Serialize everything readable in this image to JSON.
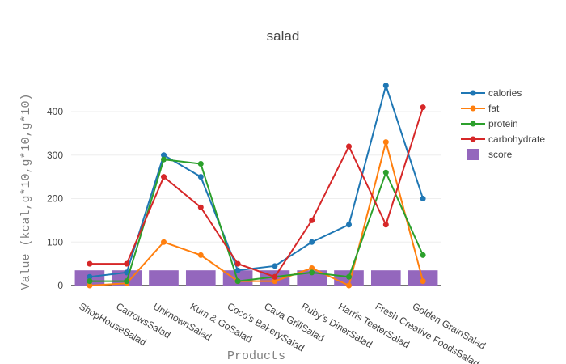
{
  "chart_data": {
    "type": "line",
    "title": "salad",
    "xlabel": "Products",
    "ylabel": "Value (kcal,g*10,g*10,g*10)",
    "categories": [
      "ShopHouseSalad",
      "CarrowsSalad",
      "UnknownSalad",
      "Kum & GoSalad",
      "Coco's BakerySalad",
      "Cava GrillSalad",
      "Ruby's DinerSalad",
      "Harris TeeterSalad",
      "Fresh Creative FoodsSalad",
      "Golden GrainSalad"
    ],
    "ylim": [
      0,
      480
    ],
    "yticks": [
      0,
      100,
      200,
      300,
      400
    ],
    "grid": true,
    "legend_position": "right",
    "series": [
      {
        "name": "calories",
        "type": "line",
        "color": "#1f77b4",
        "values": [
          20,
          30,
          300,
          250,
          35,
          45,
          100,
          140,
          460,
          200
        ]
      },
      {
        "name": "fat",
        "type": "line",
        "color": "#ff7f0e",
        "values": [
          0,
          5,
          100,
          70,
          10,
          10,
          40,
          0,
          330,
          10
        ]
      },
      {
        "name": "protein",
        "type": "line",
        "color": "#2ca02c",
        "values": [
          10,
          10,
          290,
          280,
          10,
          20,
          30,
          20,
          260,
          70
        ]
      },
      {
        "name": "carbohydrate",
        "type": "line",
        "color": "#d62728",
        "values": [
          50,
          50,
          250,
          180,
          50,
          20,
          150,
          320,
          140,
          410
        ]
      },
      {
        "name": "score",
        "type": "bar",
        "color": "#9467bd",
        "values": [
          35,
          35,
          35,
          35,
          35,
          35,
          35,
          35,
          35,
          35
        ]
      }
    ]
  }
}
